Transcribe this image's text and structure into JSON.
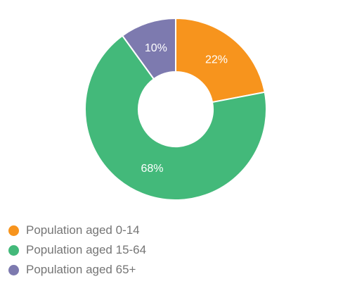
{
  "chart_data": {
    "type": "pie",
    "donut": true,
    "title": "",
    "legend_position": "bottom-left",
    "slices": [
      {
        "label": "Population aged 0-14",
        "value": 22,
        "display": "22%",
        "color": "#F7941D"
      },
      {
        "label": "Population aged 15-64",
        "value": 68,
        "display": "68%",
        "color": "#43B97A"
      },
      {
        "label": "Population aged 65+",
        "value": 10,
        "display": "10%",
        "color": "#7D7AAF"
      }
    ]
  }
}
